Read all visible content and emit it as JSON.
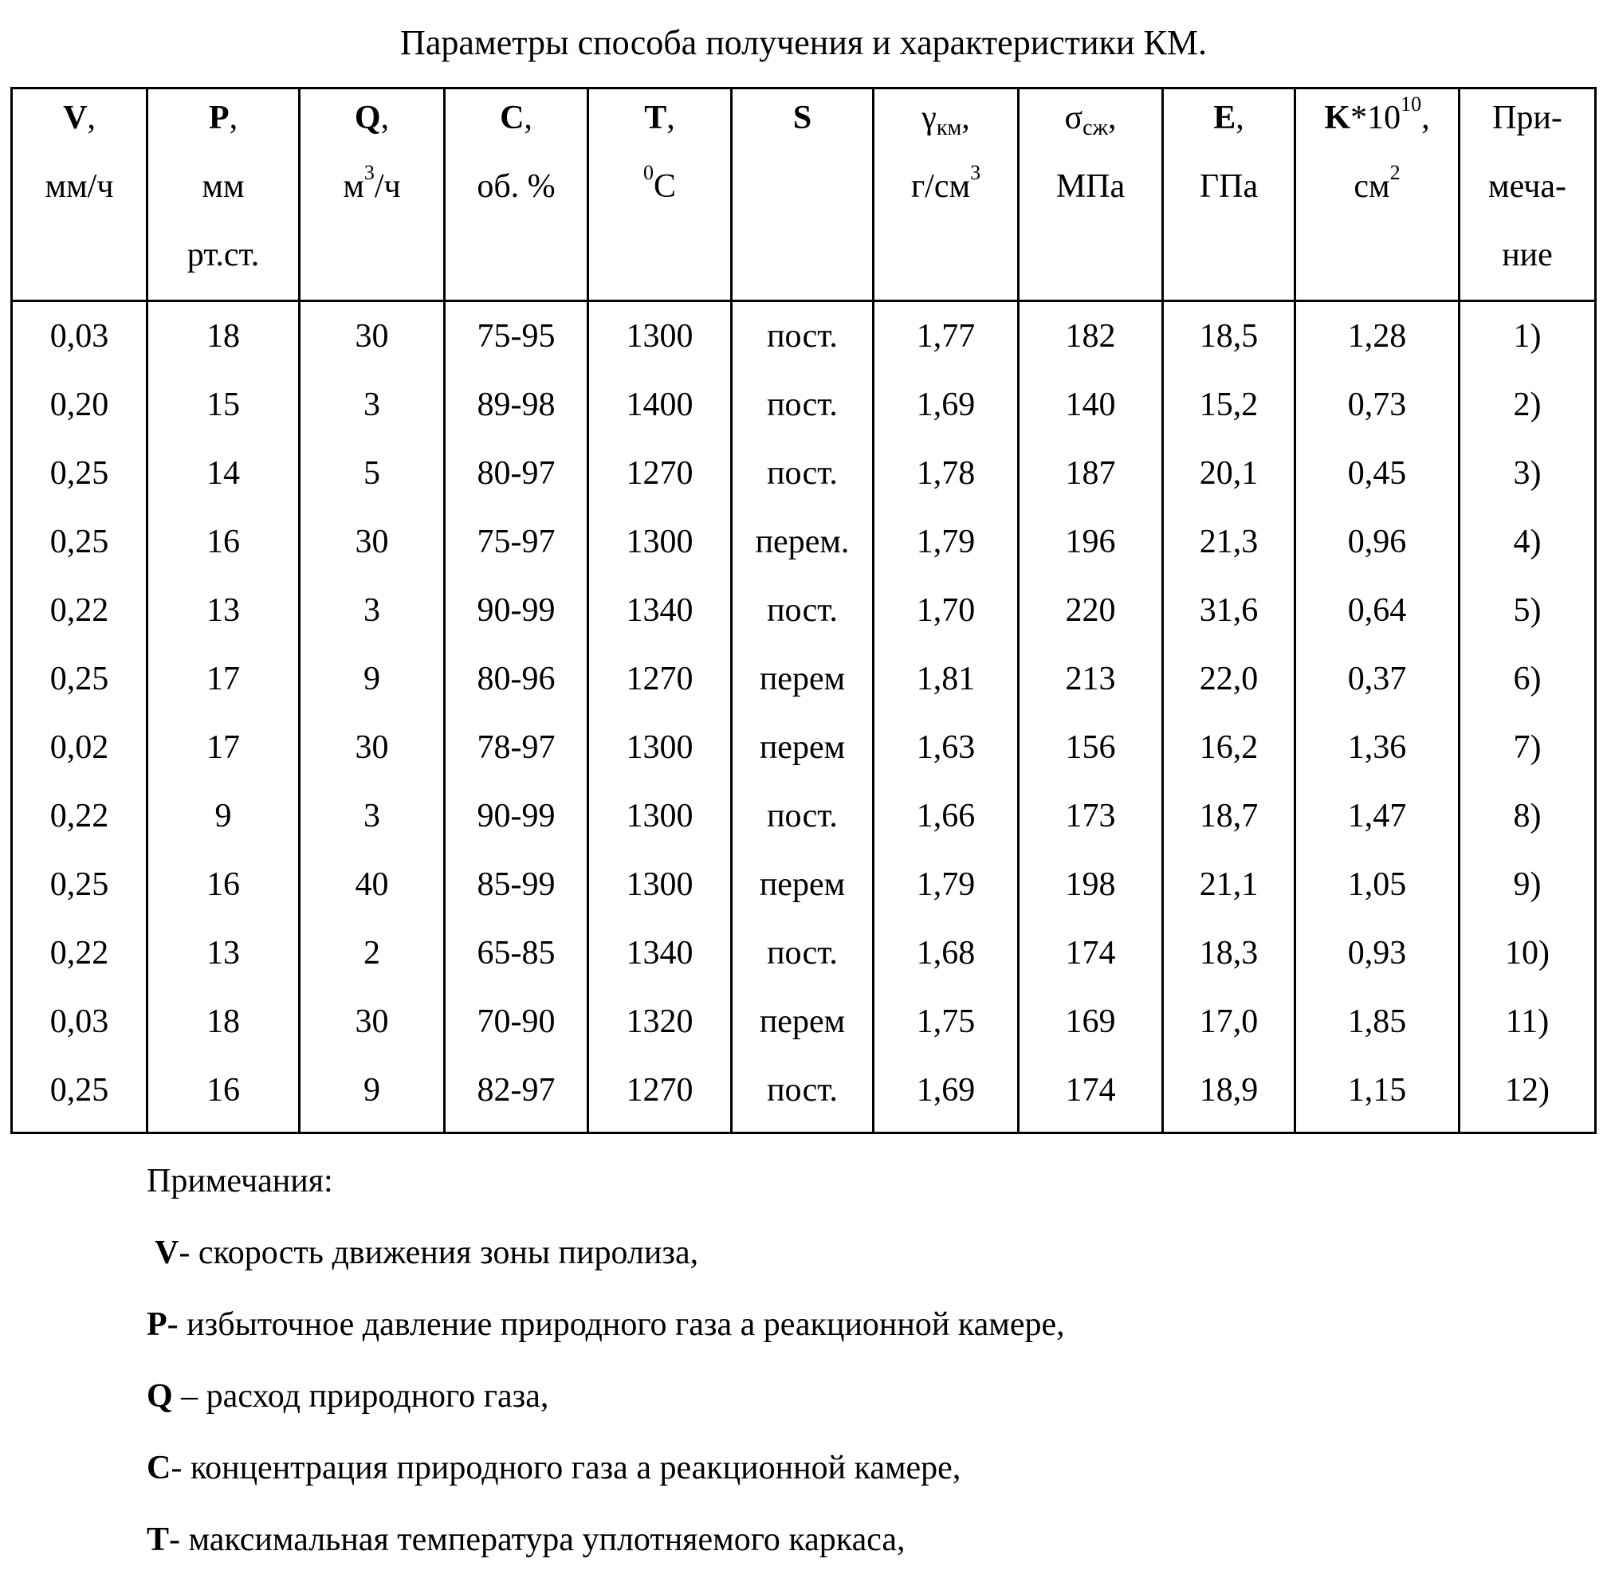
{
  "title": "Параметры способа получения и характеристики КМ.",
  "table": {
    "header": [
      [
        [
          {
            "t": "V",
            "f": "b"
          },
          {
            "t": ","
          }
        ],
        [
          {
            "t": "мм/ч"
          }
        ]
      ],
      [
        [
          {
            "t": "P",
            "f": "b"
          },
          {
            "t": ","
          }
        ],
        [
          {
            "t": "мм"
          }
        ],
        [
          {
            "t": "рт.ст."
          }
        ]
      ],
      [
        [
          {
            "t": "Q",
            "f": "b"
          },
          {
            "t": ","
          }
        ],
        [
          {
            "t": "м"
          },
          {
            "t": "3",
            "f": "sup"
          },
          {
            "t": "/ч"
          }
        ]
      ],
      [
        [
          {
            "t": "C",
            "f": "b"
          },
          {
            "t": ","
          }
        ],
        [
          {
            "t": "об. %"
          }
        ]
      ],
      [
        [
          {
            "t": "T",
            "f": "b"
          },
          {
            "t": ","
          }
        ],
        [
          {
            "t": "0",
            "f": "sup"
          },
          {
            "t": "C"
          }
        ]
      ],
      [
        [
          {
            "t": "S",
            "f": "b"
          }
        ]
      ],
      [
        [
          {
            "t": "γ"
          },
          {
            "t": "км",
            "f": "sub"
          },
          {
            "t": ","
          }
        ],
        [
          {
            "t": "г/см"
          },
          {
            "t": "3",
            "f": "sup"
          }
        ]
      ],
      [
        [
          {
            "t": "σ"
          },
          {
            "t": "сж",
            "f": "sub"
          },
          {
            "t": ","
          }
        ],
        [
          {
            "t": "МПа"
          }
        ]
      ],
      [
        [
          {
            "t": "E",
            "f": "b"
          },
          {
            "t": ","
          }
        ],
        [
          {
            "t": "ГПа"
          }
        ]
      ],
      [
        [
          {
            "t": "K",
            "f": "b"
          },
          {
            "t": "*10"
          },
          {
            "t": "10",
            "f": "sup"
          },
          {
            "t": ","
          }
        ],
        [
          {
            "t": "см"
          },
          {
            "t": "2",
            "f": "sup"
          }
        ]
      ],
      [
        [
          {
            "t": "При-"
          }
        ],
        [
          {
            "t": "меча-"
          }
        ],
        [
          {
            "t": "ние"
          }
        ]
      ]
    ],
    "rows": [
      [
        "0,03",
        "18",
        "30",
        "75-95",
        "1300",
        "пост.",
        "1,77",
        "182",
        "18,5",
        "1,28",
        "1)"
      ],
      [
        "0,20",
        "15",
        "3",
        "89-98",
        "1400",
        "пост.",
        "1,69",
        "140",
        "15,2",
        "0,73",
        "2)"
      ],
      [
        "0,25",
        "14",
        "5",
        "80-97",
        "1270",
        "пост.",
        "1,78",
        "187",
        "20,1",
        "0,45",
        "3)"
      ],
      [
        "0,25",
        "16",
        "30",
        "75-97",
        "1300",
        "перем.",
        "1,79",
        "196",
        "21,3",
        "0,96",
        "4)"
      ],
      [
        "0,22",
        "13",
        "3",
        "90-99",
        "1340",
        "пост.",
        "1,70",
        "220",
        "31,6",
        "0,64",
        "5)"
      ],
      [
        "0,25",
        "17",
        "9",
        "80-96",
        "1270",
        "перем",
        "1,81",
        "213",
        "22,0",
        "0,37",
        "6)"
      ],
      [
        "0,02",
        "17",
        "30",
        "78-97",
        "1300",
        "перем",
        "1,63",
        "156",
        "16,2",
        "1,36",
        "7)"
      ],
      [
        "0,22",
        "9",
        "3",
        "90-99",
        "1300",
        "пост.",
        "1,66",
        "173",
        "18,7",
        "1,47",
        "8)"
      ],
      [
        "0,25",
        "16",
        "40",
        "85-99",
        "1300",
        "перем",
        "1,79",
        "198",
        "21,1",
        "1,05",
        "9)"
      ],
      [
        "0,22",
        "13",
        "2",
        "65-85",
        "1340",
        "пост.",
        "1,68",
        "174",
        "18,3",
        "0,93",
        "10)"
      ],
      [
        "0,03",
        "18",
        "30",
        "70-90",
        "1320",
        "перем",
        "1,75",
        "169",
        "17,0",
        "1,85",
        "11)"
      ],
      [
        "0,25",
        "16",
        "9",
        "82-97",
        "1270",
        "пост.",
        "1,69",
        "174",
        "18,9",
        "1,15",
        "12)"
      ]
    ]
  },
  "notes": {
    "heading": "Примечания:",
    "items": [
      {
        "symbol": "V",
        "text": "- скорость движения зоны пиролиза,"
      },
      {
        "symbol": "P",
        "text": "- избыточное давление природного газа а реакционной камере,"
      },
      {
        "symbol": "Q",
        "text": " – расход природного газа,"
      },
      {
        "symbol": "C",
        "text": "- концентрация природного газа а реакционной камере,"
      },
      {
        "symbol": "T",
        "text": "- максимальная температура уплотняемого каркаса,"
      }
    ]
  }
}
